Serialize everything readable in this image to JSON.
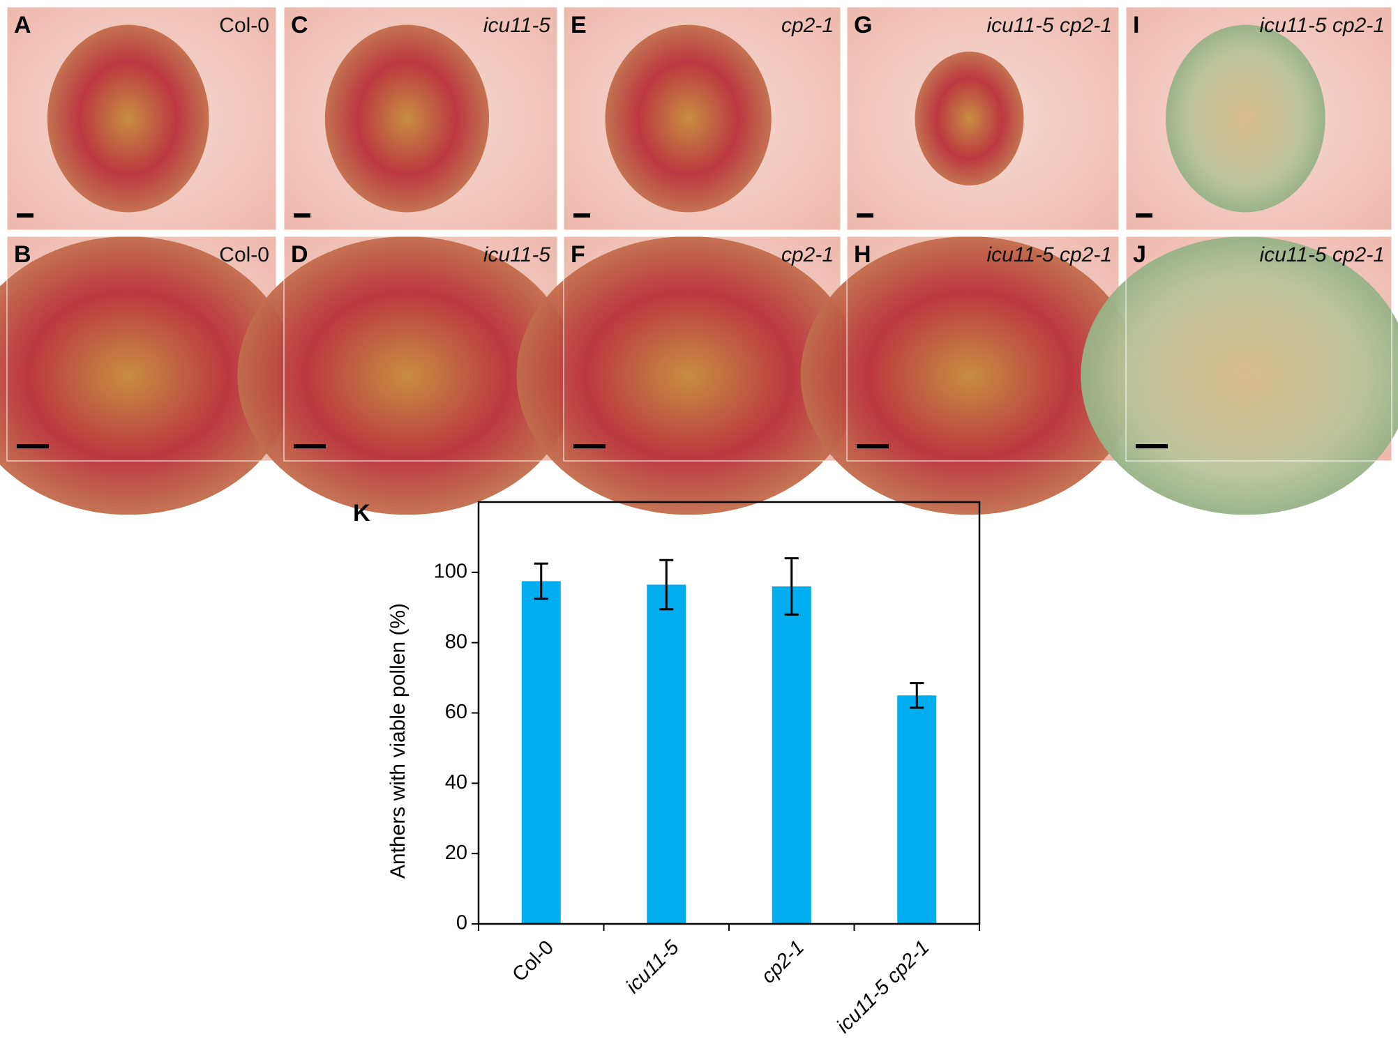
{
  "panels": [
    {
      "letter": "A",
      "label": "Col-0",
      "italic": false
    },
    {
      "letter": "B",
      "label": "Col-0",
      "italic": false
    },
    {
      "letter": "C",
      "label": "icu11-5",
      "italic": true
    },
    {
      "letter": "D",
      "label": "icu11-5",
      "italic": true
    },
    {
      "letter": "E",
      "label": "cp2-1",
      "italic": true
    },
    {
      "letter": "F",
      "label": "cp2-1",
      "italic": true
    },
    {
      "letter": "G",
      "label": "icu11-5 cp2-1",
      "italic": true
    },
    {
      "letter": "H",
      "label": "icu11-5 cp2-1",
      "italic": true
    },
    {
      "letter": "I",
      "label": "icu11-5 cp2-1",
      "italic": true
    },
    {
      "letter": "J",
      "label": "icu11-5 cp2-1",
      "italic": true
    }
  ],
  "chart_data": {
    "type": "bar",
    "panel_label": "K",
    "y_label": "Anthers with viable pollen (%)",
    "categories": [
      "Col-0",
      "icu11-5",
      "cp2-1",
      "icu11-5 cp2-1"
    ],
    "values": [
      97.5,
      96.5,
      96,
      65
    ],
    "errors": [
      5,
      7,
      8,
      3.5
    ],
    "color": "#00aeef",
    "ylim": [
      0,
      120
    ],
    "yticks": [
      0,
      20,
      40,
      60,
      80,
      100
    ]
  }
}
